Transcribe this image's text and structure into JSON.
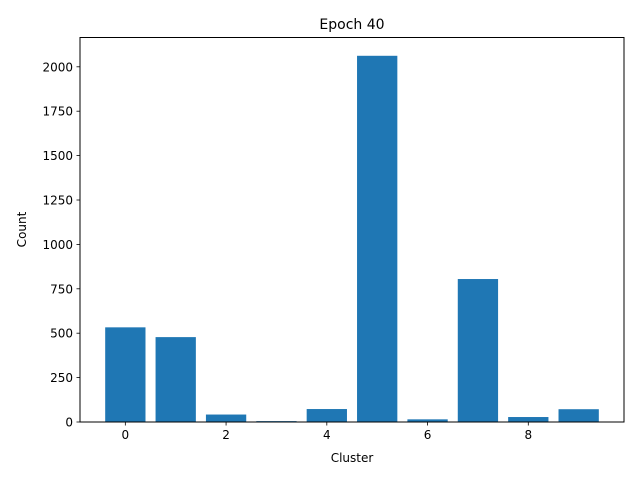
{
  "chart_data": {
    "type": "bar",
    "title": "Epoch 40",
    "xlabel": "Cluster",
    "ylabel": "Count",
    "categories": [
      0,
      1,
      2,
      3,
      4,
      5,
      6,
      7,
      8,
      9
    ],
    "values": [
      533,
      478,
      42,
      5,
      73,
      2062,
      15,
      805,
      28,
      72
    ],
    "xlim": [
      -0.9,
      9.9
    ],
    "ylim": [
      0,
      2165
    ],
    "xticks": [
      0,
      2,
      4,
      6,
      8
    ],
    "yticks": [
      0,
      250,
      500,
      750,
      1000,
      1250,
      1500,
      1750,
      2000
    ],
    "bar_color": "#1f77b4",
    "grid": false,
    "legend": false
  }
}
